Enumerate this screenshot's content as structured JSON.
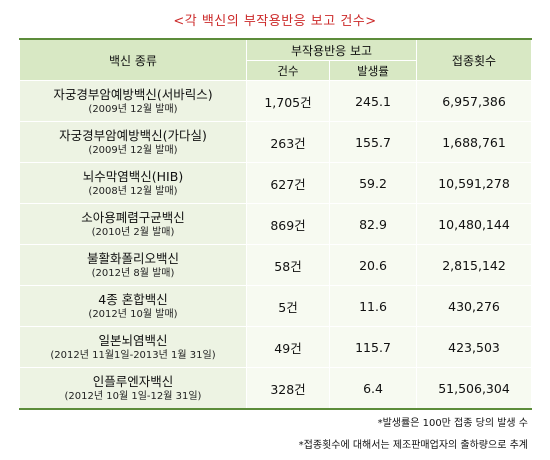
{
  "title": "<각 백신의 부작용반응 보고 건수>",
  "headers": {
    "vaccine_type": "백신 종류",
    "report_group": "부작용반응 보고",
    "count": "건수",
    "rate": "발생률",
    "doses": "접종횟수"
  },
  "rows": [
    {
      "name": "자궁경부암예방백신(서바릭스)",
      "sub": "(2009년 12월 발매)",
      "count": "1,705건",
      "rate": "245.1",
      "doses": "6,957,386"
    },
    {
      "name": "자궁경부암예방백신(가다실)",
      "sub": "(2009년 12월 발매)",
      "count": "263건",
      "rate": "155.7",
      "doses": "1,688,761"
    },
    {
      "name": "뇌수막염백신(HIB)",
      "sub": "(2008년 12월 발매)",
      "count": "627건",
      "rate": "59.2",
      "doses": "10,591,278"
    },
    {
      "name": "소아용폐렴구균백신",
      "sub": "(2010년 2월 발매)",
      "count": "869건",
      "rate": "82.9",
      "doses": "10,480,144"
    },
    {
      "name": "불활화폴리오백신",
      "sub": "(2012년 8월 발매)",
      "count": "58건",
      "rate": "20.6",
      "doses": "2,815,142"
    },
    {
      "name": "4종 혼합백신",
      "sub": "(2012년 10월 발매)",
      "count": "5건",
      "rate": "11.6",
      "doses": "430,276"
    },
    {
      "name": "일본뇌염백신",
      "sub": "(2012년 11월1일-2013년 1월 31일)",
      "count": "49건",
      "rate": "115.7",
      "doses": "423,503"
    },
    {
      "name": "인플루엔자백신",
      "sub": "(2012년 10월 1일-12월 31일)",
      "count": "328건",
      "rate": "6.4",
      "doses": "51,506,304"
    }
  ],
  "footnotes": [
    "*발생률은 100만 접종 당의 발생 수",
    "*접종횟수에 대해서는 제조판매업자의 출하량으로 추계"
  ]
}
